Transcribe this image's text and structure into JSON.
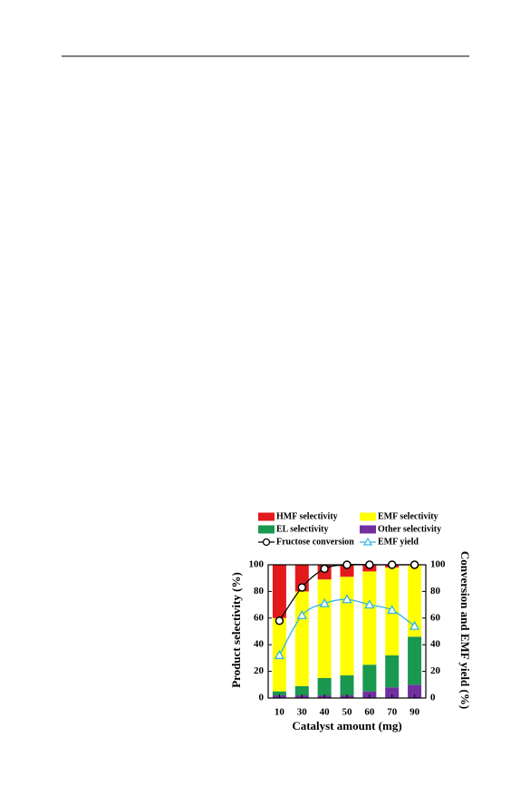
{
  "chart_data": {
    "type": "bar",
    "stacked": true,
    "xlabel": "Catalyst amount (mg)",
    "ylabel": "Product selectivity (%)",
    "y2label": "Conversion and EMF yield (%)",
    "categories": [
      "10",
      "30",
      "40",
      "50",
      "60",
      "70",
      "90"
    ],
    "ylim": [
      0,
      100
    ],
    "yticks": [
      0,
      20,
      40,
      60,
      80,
      100
    ],
    "y2lim": [
      0,
      100
    ],
    "y2ticks": [
      0,
      20,
      40,
      60,
      80,
      100
    ],
    "series": [
      {
        "name": "HMF selectivity",
        "color": "#e31a1c",
        "values": [
          40,
          20,
          11,
          9,
          5,
          2,
          0
        ]
      },
      {
        "name": "EMF selectivity",
        "color": "#ffff00",
        "values": [
          55,
          71,
          74,
          74,
          70,
          66,
          54
        ]
      },
      {
        "name": "EL selectivity",
        "color": "#1a9850",
        "values": [
          3,
          7,
          13,
          15,
          20,
          24,
          36
        ]
      },
      {
        "name": "Other selectivity",
        "color": "#7030a0",
        "values": [
          2,
          2,
          2,
          2,
          5,
          8,
          10
        ]
      },
      {
        "name": "Fructose conversion",
        "color": "#000000",
        "type": "line",
        "marker": "circle",
        "axis": "y2",
        "values": [
          58,
          83,
          97,
          100,
          100,
          100,
          100
        ]
      },
      {
        "name": "EMF yield",
        "color": "#33b5e5",
        "type": "line",
        "marker": "triangle",
        "axis": "y2",
        "values": [
          32,
          62,
          71,
          74,
          70,
          66,
          54
        ]
      }
    ]
  }
}
